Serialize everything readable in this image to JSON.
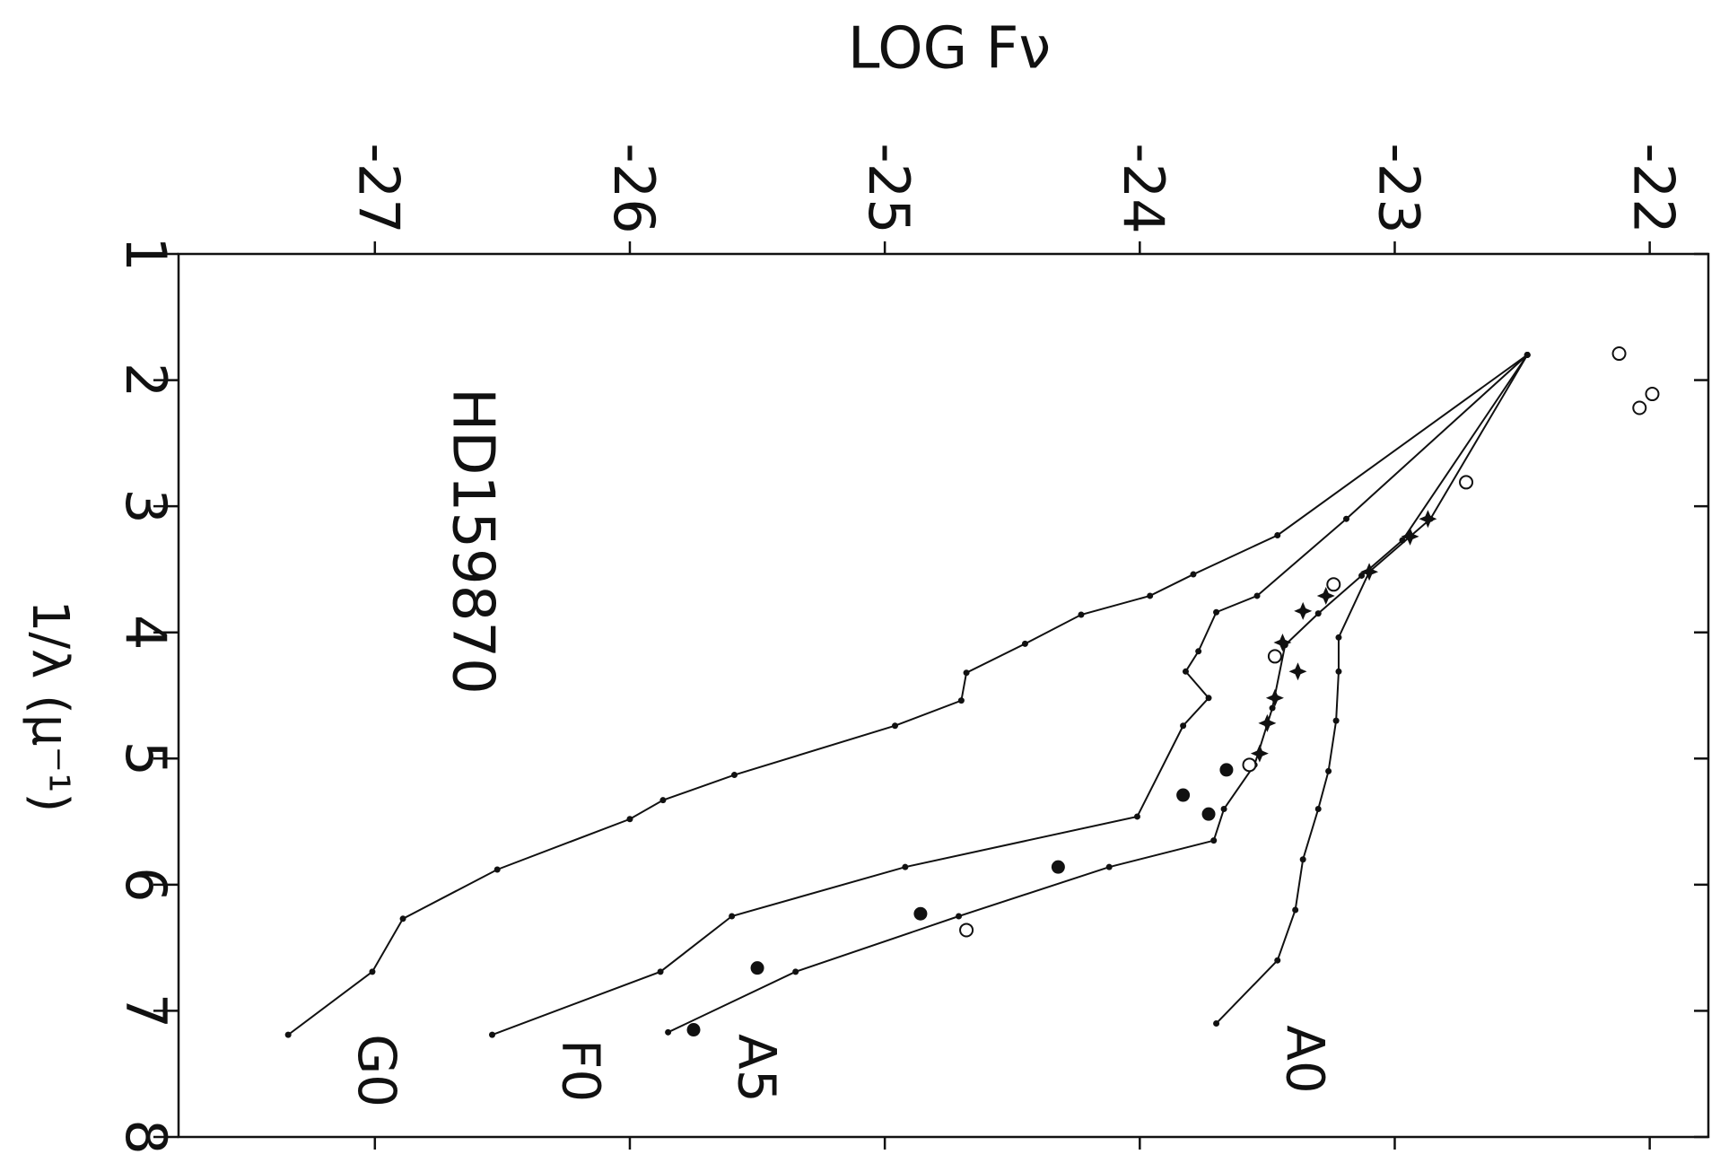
{
  "chart_data": {
    "type": "line",
    "title": "HD159870",
    "y_label": "LOG Fν",
    "x_label": "1/λ (μ⁻¹)",
    "xlim": [
      1,
      8
    ],
    "xticks": [
      1,
      2,
      3,
      4,
      5,
      6,
      7,
      8
    ],
    "ylim": [
      -27.77,
      -21.77
    ],
    "yticks": [
      -27,
      -26,
      -25,
      -24,
      -23,
      -22
    ],
    "series": [
      {
        "name": "A0",
        "color": "#111111",
        "marker": "dot",
        "x": [
          1.8,
          3.1,
          3.52,
          4.04,
          4.31,
          4.7,
          5.1,
          5.4,
          5.8,
          6.2,
          6.6,
          7.1
        ],
        "values": [
          -22.48,
          -22.86,
          -23.1,
          -23.22,
          -23.22,
          -23.23,
          -23.26,
          -23.3,
          -23.36,
          -23.39,
          -23.46,
          -23.7
        ]
      },
      {
        "name": "A5",
        "color": "#111111",
        "marker": "dot",
        "x": [
          1.8,
          3.27,
          3.55,
          3.85,
          4.1,
          4.6,
          5.05,
          5.4,
          5.65,
          5.86,
          6.25,
          6.69,
          7.17
        ],
        "values": [
          -22.48,
          -22.97,
          -23.13,
          -23.3,
          -23.43,
          -23.48,
          -23.55,
          -23.67,
          -23.71,
          -24.12,
          -24.71,
          -25.35,
          -25.85
        ]
      },
      {
        "name": "F0",
        "color": "#111111",
        "marker": "dot",
        "x": [
          1.8,
          3.1,
          3.71,
          3.84,
          4.15,
          4.31,
          4.52,
          4.74,
          5.46,
          5.86,
          6.25,
          6.69,
          7.19
        ],
        "values": [
          -22.48,
          -23.19,
          -23.54,
          -23.7,
          -23.77,
          -23.82,
          -23.73,
          -23.83,
          -24.01,
          -24.92,
          -25.6,
          -25.88,
          -26.54
        ]
      },
      {
        "name": "G0",
        "color": "#111111",
        "marker": "dot",
        "x": [
          1.8,
          3.23,
          3.54,
          3.71,
          3.86,
          4.09,
          4.32,
          4.54,
          4.74,
          5.13,
          5.33,
          5.48,
          5.88,
          6.27,
          6.69,
          7.19
        ],
        "values": [
          -22.48,
          -23.46,
          -23.79,
          -23.96,
          -24.23,
          -24.45,
          -24.68,
          -24.7,
          -24.96,
          -25.59,
          -25.87,
          -26.0,
          -26.52,
          -26.89,
          -27.01,
          -27.34
        ]
      },
      {
        "color": "#111111",
        "marker": "open-circle",
        "x": [
          1.79,
          2.11,
          2.22,
          2.81,
          3.62,
          4.19,
          5.05,
          6.36
        ],
        "values": [
          -22.12,
          -21.99,
          -22.04,
          -22.72,
          -23.24,
          -23.47,
          -23.57,
          -24.68
        ]
      },
      {
        "color": "#111111",
        "marker": "filled-circle",
        "x": [
          5.09,
          5.29,
          5.44,
          5.86,
          6.23,
          6.66,
          7.15
        ],
        "values": [
          -23.66,
          -23.83,
          -23.73,
          -24.32,
          -24.86,
          -25.5,
          -25.75
        ]
      },
      {
        "color": "#111111",
        "marker": "star",
        "x": [
          3.1,
          3.24,
          3.52,
          3.71,
          3.83,
          4.08,
          4.31,
          4.52,
          4.72,
          4.96
        ],
        "values": [
          -22.87,
          -22.94,
          -23.1,
          -23.27,
          -23.36,
          -23.44,
          -23.38,
          -23.47,
          -23.5,
          -23.53
        ]
      }
    ]
  }
}
